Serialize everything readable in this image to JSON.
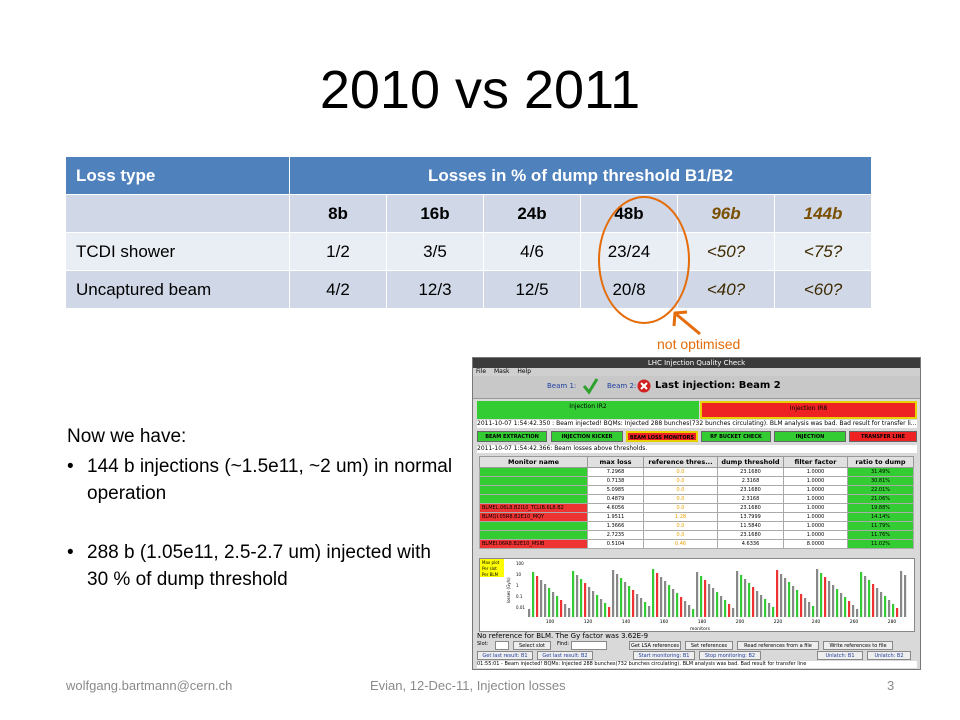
{
  "title": "2010 vs 2011",
  "table": {
    "header": [
      "Loss type",
      "Losses in % of dump threshold B1/B2"
    ],
    "subheader": [
      "",
      "8b",
      "16b",
      "24b",
      "48b",
      "96b",
      "144b"
    ],
    "rows": [
      [
        "TCDI shower",
        "1/2",
        "3/5",
        "4/6",
        "23/24",
        "<50?",
        "<75?"
      ],
      [
        "Uncaptured beam",
        "4/2",
        "12/3",
        "12/5",
        "20/8",
        "<40?",
        "<60?"
      ]
    ]
  },
  "annotation": "not optimised",
  "now_heading": "Now we have:",
  "bullets": [
    "144 b injections (~1.5e11, ~2 um) in normal operation",
    "288 b (1.05e11, 2.5-2.7 um) injected with 30 % of dump threshold"
  ],
  "footer": {
    "left": "wolfgang.bartmann@cern.ch",
    "center": "Evian, 12-Dec-11, Injection losses",
    "page": "3"
  },
  "colors": {
    "accent": "#4f81bd",
    "annotation": "#e46c0a"
  },
  "screenshot": {
    "window_title": "LHC Injection Quality Check",
    "menu": [
      "File",
      "Mask",
      "Help"
    ],
    "beam1": "Beam 1:",
    "beam2": "Beam 2:",
    "last_injection": "Last injection: Beam 2",
    "inj_ir2": "Injection IR2",
    "inj_ir8": "Injection IR8",
    "message": "2011-10-07 1:54:42.350 : Beam injected! BQMs: Injected 288 bunches(732 bunches circulating). BLM analysis was bad. Bad result for transfer li...",
    "tabs": [
      "BEAM EXTRACTION",
      "INJECTION KICKER",
      "BEAM LOSS MONITORS",
      "RF BUCKET CHECK",
      "INJECTION OSCILLATIONS",
      "TRANSFER LINE"
    ],
    "sub_message": "2011-10-07 1:54:42.366: Beam losses above thresholds.",
    "columns": [
      "Monitor name",
      "max loss",
      "reference thres...",
      "dump threshold",
      "filter factor",
      "ratio to dump"
    ],
    "rows": [
      [
        "",
        "7.2968",
        "0.0",
        "23.1680",
        "1.0000",
        "31.49%"
      ],
      [
        "",
        "0.7138",
        "0.0",
        "2.3168",
        "1.0000",
        "30.81%"
      ],
      [
        "",
        "5.0985",
        "0.0",
        "23.1680",
        "1.0000",
        "22.01%"
      ],
      [
        "",
        "0.4879",
        "0.0",
        "2.3168",
        "1.0000",
        "21.06%"
      ],
      [
        "BLMEL.06L8.B2I10_TCLIB.6L8.B2",
        "4.6056",
        "0.0",
        "23.1680",
        "1.0000",
        "19.88%"
      ],
      [
        "BLMQI.05R8.B2E10_MQY",
        "1.9511",
        "1.28",
        "13.7999",
        "1.0000",
        "14.14%"
      ],
      [
        "",
        "1.3666",
        "0.0",
        "11.5840",
        "1.0000",
        "11.79%"
      ],
      [
        "",
        "2.7235",
        "0.0",
        "23.1680",
        "1.0000",
        "11.76%"
      ],
      [
        "BLMEI.06R8.B2E10_MSIB",
        "0.5104",
        "0.46",
        "4.6336",
        "8.0000",
        "11.02%"
      ]
    ],
    "plot_legend": [
      "Max plot",
      "Per slot",
      "Per BLM"
    ],
    "plot_ylabel": "losses (Gy/s)",
    "plot_xlabel": "monitors",
    "plot_yticks": [
      "100",
      "10",
      "1",
      "0.1",
      "0.01"
    ],
    "plot_xticks": [
      "100",
      "120",
      "140",
      "160",
      "180",
      "200",
      "220",
      "240",
      "260",
      "280"
    ],
    "ref_message": "No reference for BLM. The Gy factor was 3.62E-9",
    "slot_label": "Slot:",
    "find_label": "Find:",
    "ref_buttons": [
      "Select slot",
      "Get LSA references",
      "Set references",
      "Read references from a file",
      "Write references to file"
    ],
    "bottom_buttons": [
      "Get last result: B1",
      "Get last result: B2",
      "Start monitoring: B1",
      "Stop monitoring: B2",
      "Unlatch: B1",
      "Unlatch: B2"
    ],
    "status": "01:55:01 - Beam injected! BQMs: Injected 288 bunches(732 bunches circulating). BLM analysis was bad. Bad result for transfer line"
  }
}
